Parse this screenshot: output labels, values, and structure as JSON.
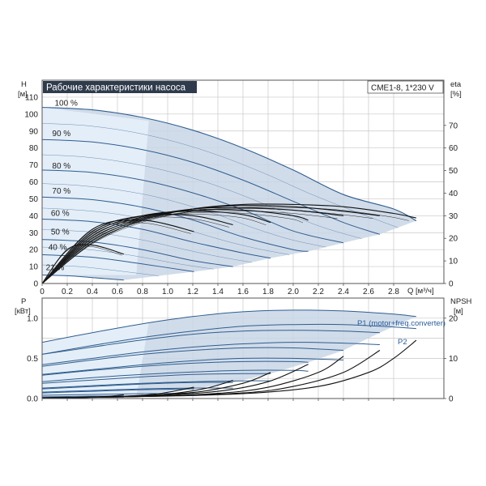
{
  "title": "Рабочие характеристики насоса",
  "model": "CME1-8, 1*230 V",
  "chart_data": [
    {
      "type": "line",
      "name": "head",
      "y_label": "H",
      "y_unit": "[м]",
      "x_label": "Q [м³/ч]",
      "y2_label": "eta",
      "y2_unit": "[%]",
      "xlim": [
        0,
        3.2
      ],
      "ylim": [
        0,
        120
      ],
      "y2lim": [
        0,
        90
      ],
      "x_ticks": [
        "0",
        "0.2",
        "0.4",
        "0.6",
        "0.8",
        "1.0",
        "1.2",
        "1.4",
        "1.6",
        "1.8",
        "2.0",
        "2.2",
        "2.4",
        "2.6",
        "2.8"
      ],
      "y_ticks": [
        "0",
        "10",
        "20",
        "30",
        "40",
        "50",
        "60",
        "70",
        "80",
        "90",
        "100",
        "110"
      ],
      "y2_ticks": [
        "0",
        "10",
        "20",
        "30",
        "40",
        "50",
        "60",
        "70"
      ],
      "grid": true,
      "head_curves": [
        {
          "label": "100 %",
          "x": [
            0,
            0.4,
            0.8,
            1.2,
            1.6,
            2.0,
            2.4,
            2.8,
            2.98
          ],
          "y": [
            104,
            102.5,
            98,
            90.5,
            80,
            67,
            52.5,
            44,
            37
          ]
        },
        {
          "label": "90 %",
          "x": [
            0,
            0.4,
            0.8,
            1.2,
            1.6,
            2.0,
            2.4,
            2.69
          ],
          "y": [
            85,
            83.5,
            79,
            71.5,
            61,
            48.5,
            36,
            29
          ]
        },
        {
          "label": "80 %",
          "x": [
            0,
            0.4,
            0.8,
            1.2,
            1.6,
            2.0,
            2.4
          ],
          "y": [
            67,
            65.5,
            61,
            53.5,
            43.5,
            31,
            24
          ]
        },
        {
          "label": "70 %",
          "x": [
            0,
            0.4,
            0.8,
            1.2,
            1.6,
            2.0,
            2.12
          ],
          "y": [
            51,
            49.5,
            45,
            37.5,
            27.5,
            20,
            19
          ]
        },
        {
          "label": "60 %",
          "x": [
            0,
            0.4,
            0.8,
            1.2,
            1.6,
            1.82
          ],
          "y": [
            38,
            36.5,
            32,
            24.5,
            18,
            15
          ]
        },
        {
          "label": "50 %",
          "x": [
            0,
            0.4,
            0.8,
            1.2,
            1.52
          ],
          "y": [
            26,
            24.5,
            20,
            13.5,
            10
          ]
        },
        {
          "label": "40 %",
          "x": [
            0,
            0.4,
            0.8,
            1.21
          ],
          "y": [
            17,
            15.5,
            11.5,
            7
          ]
        },
        {
          "label": "21 %",
          "x": [
            0,
            0.2,
            0.4,
            0.65
          ],
          "y": [
            5,
            4.6,
            3.5,
            2
          ]
        }
      ],
      "eta_curves": [
        {
          "x": [
            0,
            0.4,
            0.8,
            1.2,
            1.6,
            2.0,
            2.4,
            2.8,
            2.98
          ],
          "y": [
            0,
            18,
            28,
            33,
            35,
            35,
            34,
            31,
            29
          ]
        },
        {
          "x": [
            0,
            0.4,
            0.8,
            1.2,
            1.6,
            2.0,
            2.4,
            2.69
          ],
          "y": [
            0,
            19,
            28.5,
            33,
            34.5,
            34,
            32,
            30
          ]
        },
        {
          "x": [
            0,
            0.4,
            0.8,
            1.2,
            1.6,
            2.0,
            2.4
          ],
          "y": [
            0,
            20,
            29,
            33,
            33.5,
            32.5,
            30
          ]
        },
        {
          "x": [
            0,
            0.4,
            0.8,
            1.2,
            1.6,
            2.0,
            2.12
          ],
          "y": [
            0,
            21,
            29.5,
            32.5,
            32.5,
            30,
            28
          ]
        },
        {
          "x": [
            0,
            0.4,
            0.8,
            1.2,
            1.6,
            1.82
          ],
          "y": [
            0,
            22,
            30,
            32,
            30.5,
            27
          ]
        },
        {
          "x": [
            0,
            0.4,
            0.8,
            1.2,
            1.52
          ],
          "y": [
            0,
            23,
            30,
            30,
            26
          ]
        },
        {
          "x": [
            0,
            0.4,
            0.8,
            1.21
          ],
          "y": [
            0,
            24,
            28,
            23
          ]
        },
        {
          "x": [
            0,
            0.2,
            0.4,
            0.65
          ],
          "y": [
            0,
            15,
            17,
            13
          ]
        }
      ]
    },
    {
      "type": "line",
      "name": "power",
      "y_label": "P",
      "y_unit": "[кВт]",
      "y2_label": "NPSH",
      "y2_unit": "[м]",
      "xlim": [
        0,
        3.2
      ],
      "ylim": [
        0,
        1.25
      ],
      "y2lim": [
        0,
        25
      ],
      "y_ticks": [
        "0.0",
        "0.5",
        "1.0"
      ],
      "y2_ticks": [
        "0",
        "10",
        "20"
      ],
      "grid": true,
      "series_labels": [
        "P1 (motor+freq.converter)",
        "P2"
      ],
      "p1_curves": [
        {
          "x": [
            0,
            0.4,
            0.8,
            1.2,
            1.6,
            2.0,
            2.4,
            2.8,
            2.98
          ],
          "y": [
            0.7,
            0.82,
            0.93,
            1.02,
            1.08,
            1.1,
            1.09,
            1.05,
            1.02
          ]
        },
        {
          "x": [
            0,
            0.4,
            0.8,
            1.2,
            1.6,
            2.0,
            2.4,
            2.69
          ],
          "y": [
            0.55,
            0.64,
            0.73,
            0.8,
            0.84,
            0.85,
            0.84,
            0.82
          ]
        },
        {
          "x": [
            0,
            0.4,
            0.8,
            1.2,
            1.6,
            2.0,
            2.4
          ],
          "y": [
            0.4,
            0.48,
            0.55,
            0.6,
            0.63,
            0.63,
            0.6
          ]
        },
        {
          "x": [
            0,
            0.4,
            0.8,
            1.2,
            1.6,
            2.0,
            2.12
          ],
          "y": [
            0.29,
            0.35,
            0.4,
            0.44,
            0.46,
            0.46,
            0.45
          ]
        },
        {
          "x": [
            0,
            0.4,
            0.8,
            1.2,
            1.6,
            1.82
          ],
          "y": [
            0.19,
            0.23,
            0.27,
            0.3,
            0.31,
            0.31
          ]
        },
        {
          "x": [
            0,
            0.4,
            0.8,
            1.2,
            1.52
          ],
          "y": [
            0.12,
            0.15,
            0.18,
            0.2,
            0.2
          ]
        },
        {
          "x": [
            0,
            0.4,
            0.8,
            1.21
          ],
          "y": [
            0.07,
            0.09,
            0.11,
            0.12
          ]
        },
        {
          "x": [
            0,
            0.2,
            0.4,
            0.65
          ],
          "y": [
            0.02,
            0.025,
            0.03,
            0.03
          ]
        }
      ],
      "p2_curves": [
        {
          "x": [
            0,
            0.4,
            0.8,
            1.2,
            1.6,
            2.0,
            2.4,
            2.8,
            2.98
          ],
          "y": [
            0.55,
            0.66,
            0.76,
            0.84,
            0.9,
            0.92,
            0.92,
            0.89,
            0.87
          ]
        },
        {
          "x": [
            0,
            0.4,
            0.8,
            1.2,
            1.6,
            2.0,
            2.4,
            2.69
          ],
          "y": [
            0.42,
            0.5,
            0.58,
            0.64,
            0.68,
            0.7,
            0.69,
            0.67
          ]
        },
        {
          "x": [
            0,
            0.4,
            0.8,
            1.2,
            1.6,
            2.0,
            2.4
          ],
          "y": [
            0.3,
            0.36,
            0.42,
            0.47,
            0.5,
            0.5,
            0.48
          ]
        },
        {
          "x": [
            0,
            0.4,
            0.8,
            1.2,
            1.6,
            2.0,
            2.12
          ],
          "y": [
            0.21,
            0.26,
            0.3,
            0.33,
            0.35,
            0.35,
            0.34
          ]
        },
        {
          "x": [
            0,
            0.4,
            0.8,
            1.2,
            1.6,
            1.82
          ],
          "y": [
            0.13,
            0.16,
            0.19,
            0.21,
            0.22,
            0.22
          ]
        },
        {
          "x": [
            0,
            0.4,
            0.8,
            1.2,
            1.52
          ],
          "y": [
            0.08,
            0.1,
            0.12,
            0.13,
            0.13
          ]
        },
        {
          "x": [
            0,
            0.4,
            0.8,
            1.21
          ],
          "y": [
            0.04,
            0.05,
            0.06,
            0.065
          ]
        },
        {
          "x": [
            0,
            0.2,
            0.4,
            0.65
          ],
          "y": [
            0.01,
            0.013,
            0.015,
            0.016
          ]
        }
      ],
      "npsh_curves": [
        {
          "x": [
            0,
            0.8,
            1.6,
            2.2,
            2.6,
            2.8,
            2.98
          ],
          "y": [
            0.2,
            0.5,
            1.2,
            3.0,
            6.5,
            10,
            14.5
          ]
        },
        {
          "x": [
            0,
            0.8,
            1.6,
            2.0,
            2.4,
            2.69
          ],
          "y": [
            0.2,
            0.5,
            1.4,
            3.0,
            6.5,
            12
          ]
        },
        {
          "x": [
            0,
            0.8,
            1.4,
            1.8,
            2.2,
            2.4
          ],
          "y": [
            0.2,
            0.5,
            1.3,
            2.8,
            6.5,
            10.5
          ]
        },
        {
          "x": [
            0,
            0.8,
            1.4,
            1.8,
            2.12
          ],
          "y": [
            0.2,
            0.6,
            1.8,
            4.2,
            8.5
          ]
        },
        {
          "x": [
            0,
            0.6,
            1.2,
            1.6,
            1.82
          ],
          "y": [
            0.2,
            0.5,
            1.5,
            3.8,
            6.5
          ]
        },
        {
          "x": [
            0,
            0.6,
            1.0,
            1.3,
            1.52
          ],
          "y": [
            0.2,
            0.5,
            1.1,
            2.5,
            4.5
          ]
        },
        {
          "x": [
            0,
            0.5,
            0.9,
            1.21
          ],
          "y": [
            0.2,
            0.4,
            1.1,
            2.8
          ]
        },
        {
          "x": [
            0,
            0.3,
            0.5,
            0.65
          ],
          "y": [
            0.1,
            0.2,
            0.5,
            0.9
          ]
        }
      ]
    }
  ]
}
